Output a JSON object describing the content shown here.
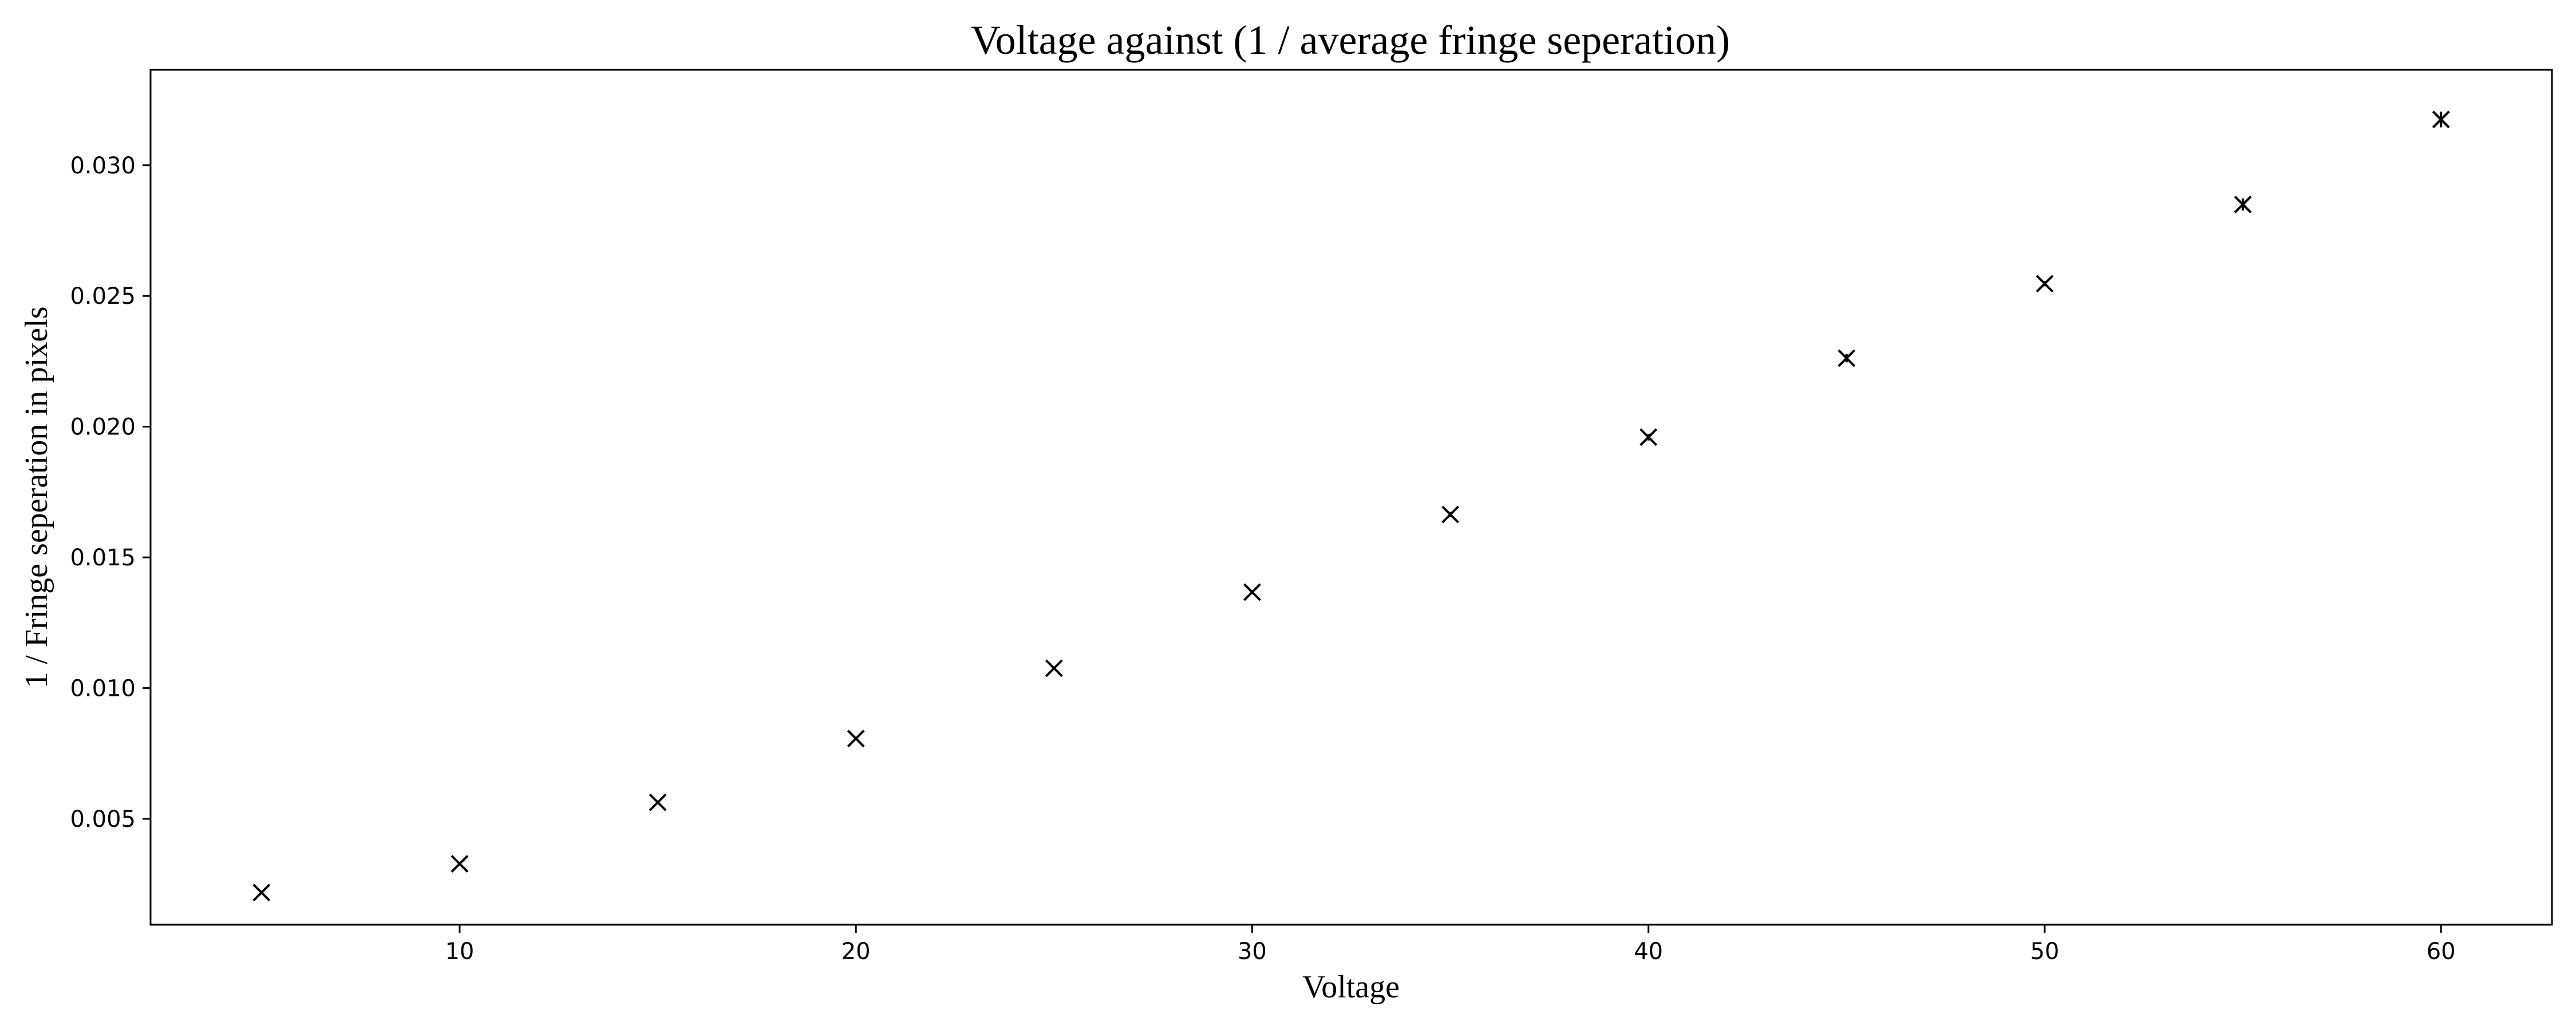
{
  "chart_data": {
    "type": "scatter",
    "title": "Voltage against (1 / average fringe seperation)",
    "xlabel": "Voltage",
    "ylabel": "1 / Fringe seperation in pixels",
    "xlim": [
      2.2,
      62.8
    ],
    "ylim": [
      0.00095,
      0.03365
    ],
    "xticks": [
      10,
      20,
      30,
      40,
      50,
      60
    ],
    "xtick_labels": [
      "10",
      "20",
      "30",
      "40",
      "50",
      "60"
    ],
    "yticks": [
      0.005,
      0.01,
      0.015,
      0.02,
      0.025,
      0.03
    ],
    "ytick_labels": [
      "0.005",
      "0.010",
      "0.015",
      "0.020",
      "0.025",
      "0.030"
    ],
    "grid": false,
    "marker": "x",
    "color": "#000000",
    "series": [
      {
        "x": [
          5,
          10,
          15,
          20,
          25,
          30,
          35,
          40,
          45,
          50,
          55,
          60
        ],
        "y": [
          0.00218,
          0.00328,
          0.00563,
          0.00807,
          0.01076,
          0.01367,
          0.01664,
          0.0196,
          0.02262,
          0.02547,
          0.0285,
          0.03175
        ],
        "yerr": [
          3e-05,
          4e-05,
          5e-05,
          6e-05,
          7e-05,
          8e-05,
          0.0001,
          0.00013,
          0.00016,
          0.0001,
          0.00023,
          0.0003
        ]
      }
    ]
  }
}
